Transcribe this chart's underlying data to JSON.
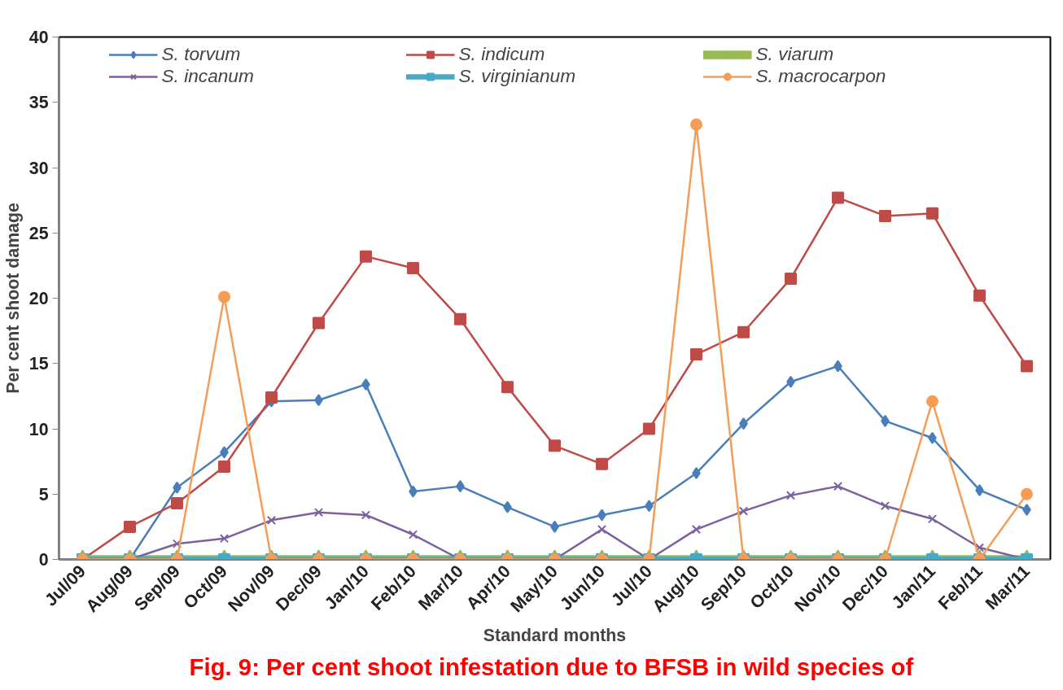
{
  "chart_data": {
    "type": "line",
    "title": "Fig. 9: Per cent shoot infestation  due to BFSB in wild species of",
    "xlabel": "Standard months",
    "ylabel": "Per cent shoot damage",
    "categories": [
      "Jul/09",
      "Aug/09",
      "Sep/09",
      "Oct/09",
      "Nov/09",
      "Dec/09",
      "Jan/10",
      "Feb/10",
      "Mar/10",
      "Apr/10",
      "May/10",
      "Jun/10",
      "Jul/10",
      "Aug/10",
      "Sep/10",
      "Oct/10",
      "Nov/10",
      "Dec/10",
      "Jan/11",
      "Feb/11",
      "Mar/11"
    ],
    "series": [
      {
        "name": "S. torvum",
        "color": "#4a7ebb",
        "marker": "diamond",
        "values": [
          0,
          0,
          5.5,
          8.2,
          12.1,
          12.2,
          13.4,
          5.2,
          5.6,
          4.0,
          2.5,
          3.4,
          4.1,
          6.6,
          10.4,
          13.6,
          14.8,
          10.6,
          9.3,
          5.3,
          3.8
        ]
      },
      {
        "name": "S. indicum",
        "color": "#be4b48",
        "marker": "square",
        "values": [
          0,
          2.5,
          4.3,
          7.1,
          12.4,
          18.1,
          23.2,
          22.3,
          18.4,
          13.2,
          8.7,
          7.3,
          10.0,
          15.7,
          17.4,
          21.5,
          27.7,
          26.3,
          26.5,
          20.2,
          14.8
        ]
      },
      {
        "name": "S. viarum",
        "color": "#98b954",
        "marker": "triangle",
        "values": [
          0,
          0,
          0,
          0,
          0,
          0,
          0,
          0,
          0,
          0,
          0,
          0,
          0,
          0,
          0,
          0,
          0,
          0,
          0,
          0,
          0
        ]
      },
      {
        "name": "S. incanum",
        "color": "#7d60a0",
        "marker": "cross",
        "values": [
          0,
          0,
          1.2,
          1.6,
          3.0,
          3.6,
          3.4,
          1.9,
          0,
          0,
          0,
          2.3,
          0,
          2.3,
          3.7,
          4.9,
          5.6,
          4.1,
          3.1,
          0.9,
          0
        ]
      },
      {
        "name": "S. virginianum",
        "color": "#46aac5",
        "marker": "square",
        "values": [
          0,
          0,
          0,
          0,
          0,
          0,
          0,
          0,
          0,
          0,
          0,
          0,
          0,
          0,
          0,
          0,
          0,
          0,
          0,
          0,
          0
        ]
      },
      {
        "name": "S. macrocarpon",
        "color": "#f59d56",
        "marker": "circle",
        "values": [
          0,
          0,
          0,
          20.1,
          0,
          0,
          0,
          0,
          0,
          0,
          0,
          0,
          0,
          33.3,
          0,
          0,
          0,
          0,
          12.1,
          0,
          5.0
        ]
      }
    ],
    "ylim": [
      0,
      40
    ],
    "yticks": [
      0,
      5,
      10,
      15,
      20,
      25,
      30,
      35,
      40
    ],
    "grid": false,
    "legend": "top",
    "line_style": "solid"
  }
}
